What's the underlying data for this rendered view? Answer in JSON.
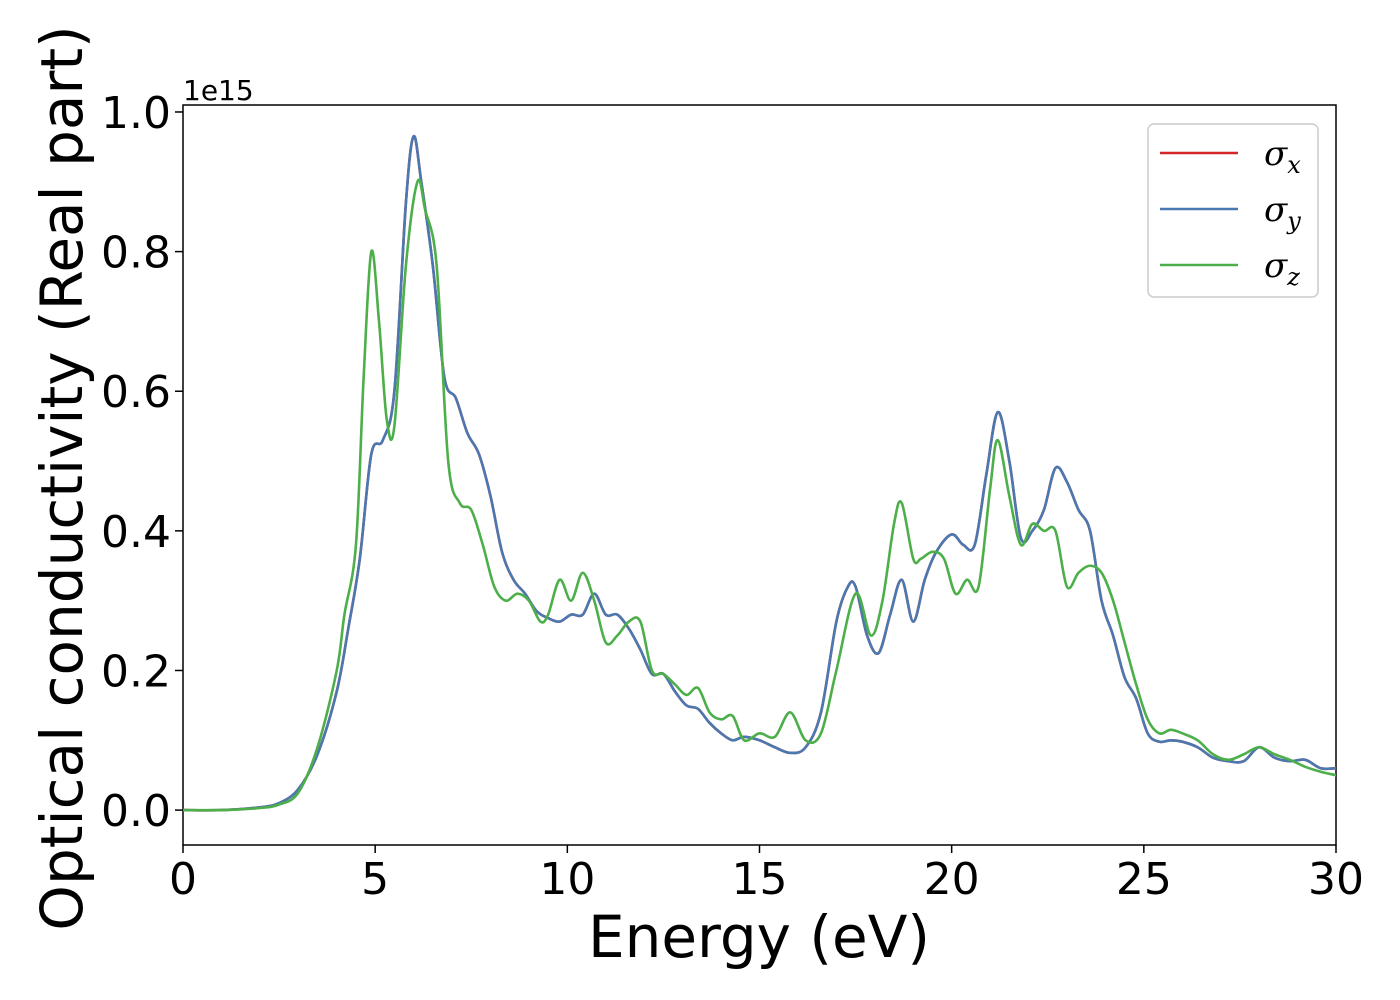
{
  "chart_data": {
    "type": "line",
    "title": "",
    "xlabel": "Energy (eV)",
    "ylabel": "Optical conductivity (Real part)",
    "y_offset_label": "1e15",
    "xlim": [
      0,
      30
    ],
    "ylim": [
      -0.05,
      1.01
    ],
    "xticks": [
      0,
      5,
      10,
      15,
      20,
      25,
      30
    ],
    "xtick_labels": [
      "0",
      "5",
      "10",
      "15",
      "20",
      "25",
      "30"
    ],
    "yticks": [
      0.0,
      0.2,
      0.4,
      0.6,
      0.8,
      1.0
    ],
    "ytick_labels": [
      "0.0",
      "0.2",
      "0.4",
      "0.6",
      "0.8",
      "1.0"
    ],
    "grid": false,
    "legend_position": "top-right",
    "series": [
      {
        "name": "σx",
        "legend_main": "σ",
        "legend_sub": "x",
        "color": "#d62728",
        "x": [
          0,
          1,
          2,
          2.5,
          3,
          3.5,
          4,
          4.3,
          4.6,
          4.9,
          5.2,
          5.5,
          5.8,
          6.0,
          6.2,
          6.5,
          6.8,
          7.1,
          7.4,
          7.7,
          8.0,
          8.3,
          8.6,
          8.9,
          9.2,
          9.5,
          9.8,
          10.1,
          10.4,
          10.7,
          11.0,
          11.3,
          11.6,
          11.9,
          12.2,
          12.5,
          12.8,
          13.1,
          13.4,
          13.7,
          14.0,
          14.3,
          14.6,
          15.0,
          15.4,
          15.8,
          16.2,
          16.6,
          17.0,
          17.3,
          17.5,
          17.8,
          18.1,
          18.4,
          18.7,
          19.0,
          19.3,
          19.6,
          20.0,
          20.3,
          20.6,
          20.9,
          21.2,
          21.5,
          21.8,
          22.1,
          22.4,
          22.7,
          23.0,
          23.3,
          23.6,
          23.9,
          24.2,
          24.5,
          24.8,
          25.1,
          25.4,
          25.7,
          26.0,
          26.4,
          26.8,
          27.2,
          27.6,
          28.0,
          28.4,
          28.8,
          29.2,
          29.6,
          30.0
        ],
        "y": [
          0.0,
          0.0,
          0.004,
          0.01,
          0.03,
          0.08,
          0.17,
          0.26,
          0.36,
          0.51,
          0.53,
          0.6,
          0.87,
          0.965,
          0.9,
          0.78,
          0.62,
          0.59,
          0.54,
          0.51,
          0.45,
          0.37,
          0.33,
          0.31,
          0.285,
          0.275,
          0.27,
          0.28,
          0.28,
          0.31,
          0.28,
          0.28,
          0.26,
          0.23,
          0.195,
          0.195,
          0.17,
          0.15,
          0.145,
          0.125,
          0.11,
          0.1,
          0.105,
          0.1,
          0.09,
          0.082,
          0.09,
          0.14,
          0.27,
          0.32,
          0.32,
          0.25,
          0.225,
          0.28,
          0.33,
          0.27,
          0.33,
          0.37,
          0.395,
          0.38,
          0.38,
          0.48,
          0.57,
          0.5,
          0.39,
          0.4,
          0.43,
          0.49,
          0.47,
          0.43,
          0.4,
          0.3,
          0.25,
          0.19,
          0.16,
          0.11,
          0.098,
          0.1,
          0.098,
          0.09,
          0.075,
          0.07,
          0.07,
          0.09,
          0.075,
          0.07,
          0.072,
          0.06,
          0.06
        ]
      },
      {
        "name": "σy",
        "legend_main": "σ",
        "legend_sub": "y",
        "color": "#4a78b0",
        "x": [
          0,
          1,
          2,
          2.5,
          3,
          3.5,
          4,
          4.3,
          4.6,
          4.9,
          5.2,
          5.5,
          5.8,
          6.0,
          6.2,
          6.5,
          6.8,
          7.1,
          7.4,
          7.7,
          8.0,
          8.3,
          8.6,
          8.9,
          9.2,
          9.5,
          9.8,
          10.1,
          10.4,
          10.7,
          11.0,
          11.3,
          11.6,
          11.9,
          12.2,
          12.5,
          12.8,
          13.1,
          13.4,
          13.7,
          14.0,
          14.3,
          14.6,
          15.0,
          15.4,
          15.8,
          16.2,
          16.6,
          17.0,
          17.3,
          17.5,
          17.8,
          18.1,
          18.4,
          18.7,
          19.0,
          19.3,
          19.6,
          20.0,
          20.3,
          20.6,
          20.9,
          21.2,
          21.5,
          21.8,
          22.1,
          22.4,
          22.7,
          23.0,
          23.3,
          23.6,
          23.9,
          24.2,
          24.5,
          24.8,
          25.1,
          25.4,
          25.7,
          26.0,
          26.4,
          26.8,
          27.2,
          27.6,
          28.0,
          28.4,
          28.8,
          29.2,
          29.6,
          30.0
        ],
        "y": [
          0.0,
          0.0,
          0.004,
          0.01,
          0.03,
          0.08,
          0.17,
          0.26,
          0.36,
          0.51,
          0.53,
          0.6,
          0.87,
          0.965,
          0.9,
          0.78,
          0.62,
          0.59,
          0.54,
          0.51,
          0.45,
          0.37,
          0.33,
          0.31,
          0.285,
          0.275,
          0.27,
          0.28,
          0.28,
          0.31,
          0.28,
          0.28,
          0.26,
          0.23,
          0.195,
          0.195,
          0.17,
          0.15,
          0.145,
          0.125,
          0.11,
          0.1,
          0.105,
          0.1,
          0.09,
          0.082,
          0.09,
          0.14,
          0.27,
          0.32,
          0.32,
          0.25,
          0.225,
          0.28,
          0.33,
          0.27,
          0.33,
          0.37,
          0.395,
          0.38,
          0.38,
          0.48,
          0.57,
          0.5,
          0.39,
          0.4,
          0.43,
          0.49,
          0.47,
          0.43,
          0.4,
          0.3,
          0.25,
          0.19,
          0.16,
          0.11,
          0.098,
          0.1,
          0.098,
          0.09,
          0.075,
          0.07,
          0.07,
          0.09,
          0.075,
          0.07,
          0.072,
          0.06,
          0.06
        ]
      },
      {
        "name": "σz",
        "legend_main": "σ",
        "legend_sub": "z",
        "color": "#4daf4a",
        "x": [
          0,
          1,
          2,
          2.5,
          3,
          3.5,
          4,
          4.2,
          4.5,
          4.7,
          4.9,
          5.1,
          5.3,
          5.5,
          5.8,
          6.1,
          6.3,
          6.6,
          6.9,
          7.2,
          7.5,
          7.8,
          8.1,
          8.4,
          8.7,
          9.0,
          9.3,
          9.5,
          9.8,
          10.1,
          10.4,
          10.7,
          11.0,
          11.3,
          11.6,
          11.9,
          12.2,
          12.5,
          12.8,
          13.1,
          13.4,
          13.7,
          14.0,
          14.3,
          14.6,
          15.0,
          15.4,
          15.8,
          16.2,
          16.6,
          17.0,
          17.5,
          17.9,
          18.2,
          18.5,
          18.7,
          19.0,
          19.2,
          19.5,
          19.8,
          20.1,
          20.4,
          20.7,
          21.0,
          21.2,
          21.5,
          21.8,
          22.1,
          22.4,
          22.7,
          23.0,
          23.3,
          23.6,
          23.9,
          24.2,
          24.5,
          24.8,
          25.1,
          25.4,
          25.7,
          26.0,
          26.4,
          26.8,
          27.2,
          27.6,
          28.0,
          28.4,
          28.8,
          29.2,
          29.6,
          30.0
        ],
        "y": [
          0.0,
          0.0,
          0.003,
          0.008,
          0.025,
          0.09,
          0.2,
          0.28,
          0.38,
          0.62,
          0.8,
          0.7,
          0.56,
          0.55,
          0.78,
          0.9,
          0.86,
          0.78,
          0.5,
          0.44,
          0.43,
          0.38,
          0.32,
          0.3,
          0.31,
          0.3,
          0.27,
          0.28,
          0.33,
          0.3,
          0.34,
          0.3,
          0.24,
          0.25,
          0.27,
          0.27,
          0.2,
          0.195,
          0.18,
          0.165,
          0.175,
          0.14,
          0.13,
          0.135,
          0.1,
          0.11,
          0.105,
          0.14,
          0.1,
          0.11,
          0.2,
          0.31,
          0.25,
          0.3,
          0.41,
          0.44,
          0.36,
          0.36,
          0.37,
          0.36,
          0.31,
          0.33,
          0.32,
          0.46,
          0.53,
          0.45,
          0.38,
          0.41,
          0.4,
          0.4,
          0.32,
          0.34,
          0.35,
          0.34,
          0.3,
          0.24,
          0.18,
          0.13,
          0.11,
          0.115,
          0.11,
          0.1,
          0.08,
          0.072,
          0.08,
          0.09,
          0.08,
          0.072,
          0.062,
          0.055,
          0.05
        ]
      }
    ]
  }
}
